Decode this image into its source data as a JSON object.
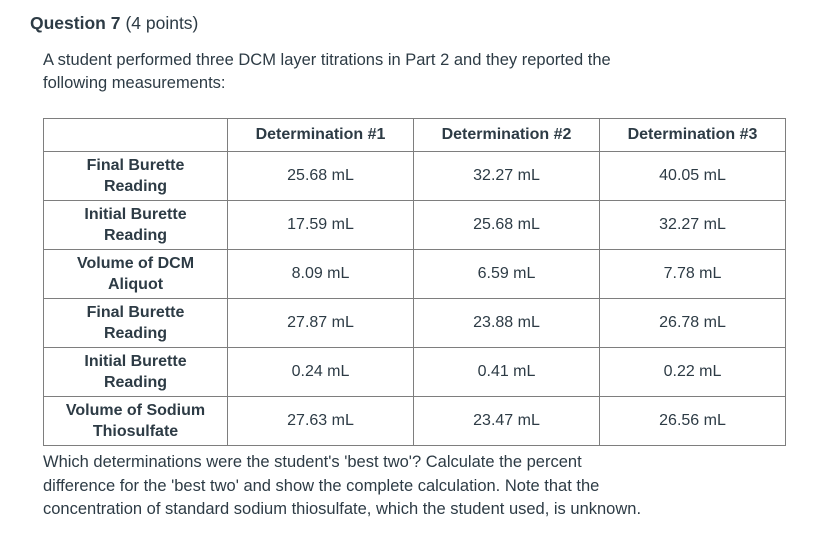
{
  "question": {
    "title": "Question 7",
    "points_label": "(4 points)",
    "intro_lines": [
      "A student performed three DCM layer titrations in Part 2 and they reported the",
      "following measurements:"
    ],
    "footer_lines": [
      "Which determinations were the student's 'best two'? Calculate the percent",
      "difference for the 'best two' and show the complete calculation. Note that the",
      "concentration of standard sodium thiosulfate, which the student used, is unknown."
    ]
  },
  "table": {
    "headers": [
      "",
      "Determination #1",
      "Determination #2",
      "Determination #3"
    ],
    "rows": [
      {
        "label": "Final Burette Reading",
        "values": [
          "25.68 mL",
          "32.27 mL",
          "40.05 mL"
        ]
      },
      {
        "label": "Initial Burette Reading",
        "values": [
          "17.59 mL",
          "25.68 mL",
          "32.27 mL"
        ]
      },
      {
        "label": "Volume of DCM Aliquot",
        "values": [
          "8.09 mL",
          "6.59 mL",
          "7.78 mL"
        ]
      },
      {
        "label": "Final Burette Reading",
        "values": [
          "27.87 mL",
          "23.88 mL",
          "26.78 mL"
        ]
      },
      {
        "label": "Initial Burette Reading",
        "values": [
          "0.24 mL",
          "0.41 mL",
          "0.22 mL"
        ]
      },
      {
        "label": "Volume of Sodium Thiosulfate",
        "values": [
          "27.63 mL",
          "23.47 mL",
          "26.56 mL"
        ]
      }
    ]
  },
  "colors": {
    "text": "#2d3b45",
    "table_border": "#7e7e7e",
    "background": "#ffffff"
  }
}
